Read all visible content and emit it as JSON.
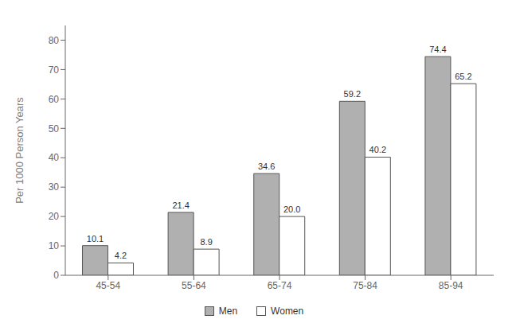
{
  "chart_data": {
    "type": "bar",
    "categories": [
      "45-54",
      "55-64",
      "65-74",
      "75-84",
      "85-94"
    ],
    "series": [
      {
        "name": "Men",
        "color": "#b0b0b0",
        "values": [
          10.1,
          21.4,
          34.6,
          59.2,
          74.4
        ],
        "value_labels": [
          "10.1",
          "21.4",
          "34.6",
          "59.2",
          "74.4"
        ]
      },
      {
        "name": "Women",
        "color": "#ffffff",
        "values": [
          4.2,
          8.9,
          20.0,
          40.2,
          65.2
        ],
        "value_labels": [
          "4.2",
          "8.9",
          "20.0",
          "40.2",
          "65.2"
        ]
      }
    ],
    "ylabel": "Per 1000 Person Years",
    "ylim": [
      0,
      85
    ],
    "yticks": [
      0,
      10,
      20,
      30,
      40,
      50,
      60,
      70,
      80
    ],
    "grid": false,
    "legend": "bottom",
    "data_labels": true
  }
}
